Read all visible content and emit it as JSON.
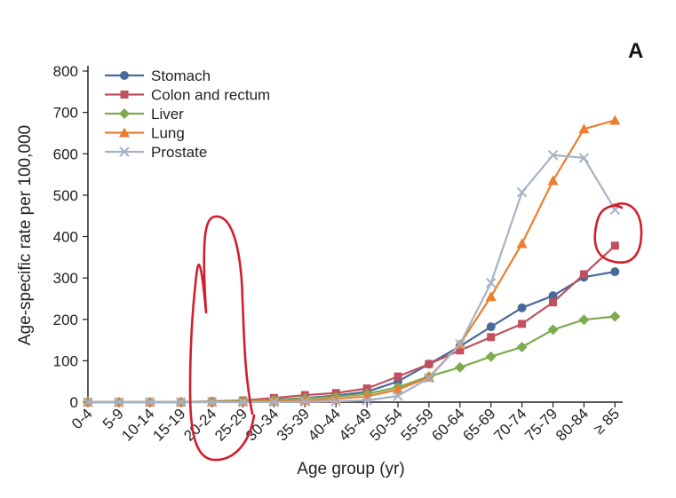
{
  "chart_data": {
    "type": "line",
    "panel_label": "A",
    "xlabel": "Age group (yr)",
    "ylabel": "Age-specific rate per 100,000",
    "ylim": [
      0,
      800
    ],
    "yticks": [
      0,
      100,
      200,
      300,
      400,
      500,
      600,
      700,
      800
    ],
    "categories": [
      "0-4",
      "5-9",
      "10-14",
      "15-19",
      "20-24",
      "25-29",
      "30-34",
      "35-39",
      "40-44",
      "45-49",
      "50-54",
      "55-59",
      "60-64",
      "65-69",
      "70-74",
      "75-79",
      "80-84",
      "≥ 85"
    ],
    "legend_position": "top-left",
    "grid": false,
    "series": [
      {
        "name": "Stomach",
        "color": "#4a6a9a",
        "marker": "circle",
        "values": [
          0,
          0,
          0,
          0,
          1,
          3,
          6,
          10,
          16,
          25,
          50,
          92,
          135,
          182,
          228,
          257,
          302,
          315
        ]
      },
      {
        "name": "Colon and rectum",
        "color": "#c0505d",
        "marker": "square",
        "values": [
          0,
          0,
          0,
          0,
          2,
          4,
          10,
          17,
          22,
          33,
          62,
          92,
          125,
          157,
          189,
          241,
          309,
          378
        ]
      },
      {
        "name": "Liver",
        "color": "#7dab4f",
        "marker": "diamond",
        "values": [
          0,
          0,
          0,
          0,
          1,
          3,
          5,
          9,
          13,
          20,
          36,
          62,
          84,
          110,
          133,
          175,
          199,
          207
        ]
      },
      {
        "name": "Lung",
        "color": "#ee7d2f",
        "marker": "triangle",
        "values": [
          0,
          0,
          0,
          0,
          0,
          1,
          2,
          4,
          8,
          14,
          30,
          60,
          140,
          255,
          383,
          535,
          660,
          681
        ]
      },
      {
        "name": "Prostate",
        "color": "#a5b2c6",
        "marker": "x",
        "values": [
          0,
          0,
          0,
          0,
          0,
          0,
          0,
          1,
          2,
          4,
          15,
          58,
          140,
          288,
          507,
          597,
          590,
          465
        ]
      }
    ],
    "annotations": [
      {
        "shape": "freehand-ellipse",
        "color": "#d11f2b",
        "around_categories": [
          "20-24",
          "25-29"
        ]
      },
      {
        "shape": "freehand-ellipse",
        "color": "#d11f2b",
        "around_categories": [
          "≥ 85"
        ],
        "around_values": [
          378,
          465
        ]
      }
    ]
  }
}
